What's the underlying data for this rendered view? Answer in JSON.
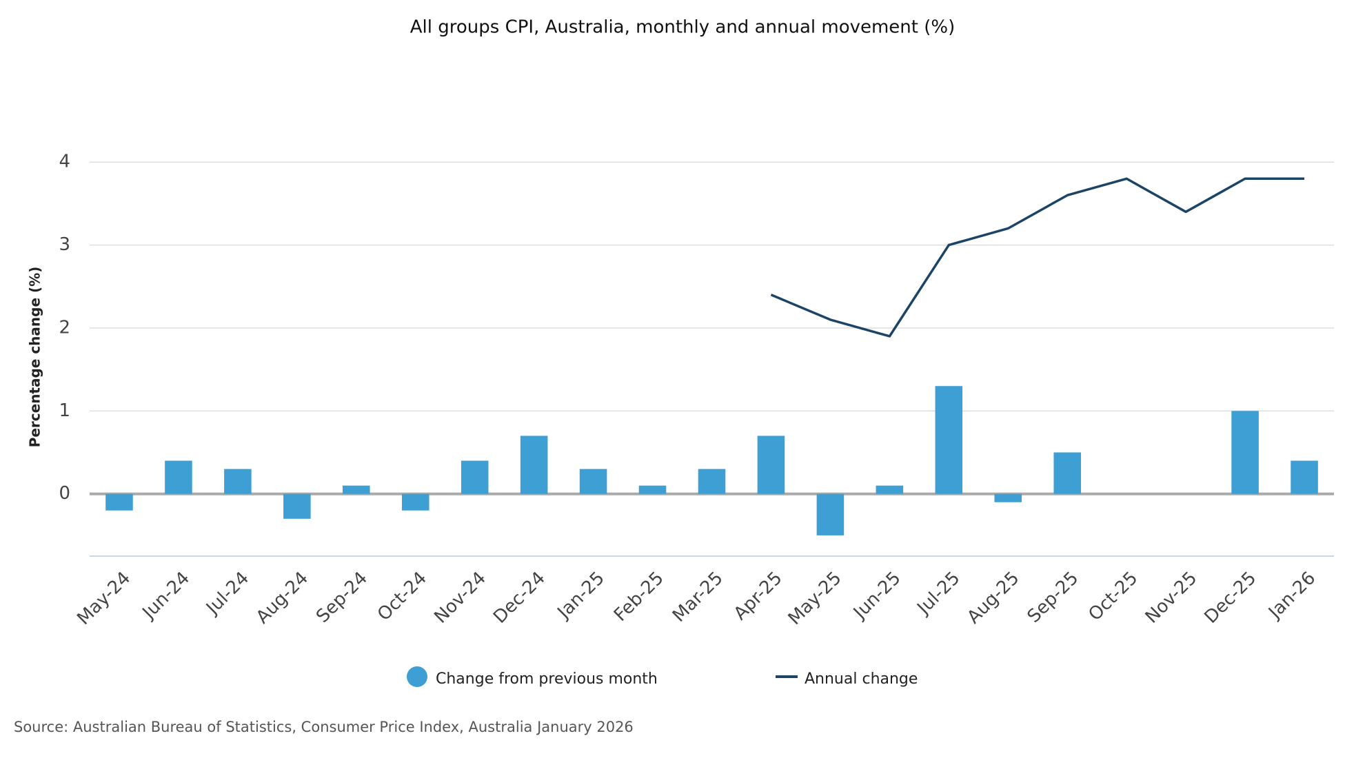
{
  "chart_data": {
    "type": "bar",
    "title": "All groups CPI, Australia, monthly and annual movement (%)",
    "y_label": "Percentage change (%)",
    "source": "Source: Australian Bureau of Statistics, Consumer Price Index, Australia January 2026",
    "categories": [
      "May-24",
      "Jun-24",
      "Jul-24",
      "Aug-24",
      "Sep-24",
      "Oct-24",
      "Nov-24",
      "Dec-24",
      "Jan-25",
      "Feb-25",
      "Mar-25",
      "Apr-25",
      "May-25",
      "Jun-25",
      "Jul-25",
      "Aug-25",
      "Sep-25",
      "Oct-25",
      "Nov-25",
      "Dec-25",
      "Jan-26"
    ],
    "series": [
      {
        "name": "Change from previous month",
        "type": "bar",
        "color": "#3d9fd3",
        "values": [
          -0.2,
          0.4,
          0.3,
          -0.3,
          0.1,
          -0.2,
          0.4,
          0.7,
          0.3,
          0.1,
          0.3,
          0.7,
          -0.5,
          0.1,
          1.3,
          -0.1,
          0.5,
          0.0,
          0.0,
          1.0,
          0.4
        ]
      },
      {
        "name": "Annual change",
        "type": "line",
        "color": "#1b4466",
        "values": [
          null,
          null,
          null,
          null,
          null,
          null,
          null,
          null,
          null,
          null,
          null,
          2.4,
          2.1,
          1.9,
          3.0,
          3.2,
          3.6,
          3.8,
          3.4,
          3.8,
          3.8
        ]
      }
    ],
    "ylim": [
      -0.75,
      4.5
    ],
    "yticks": [
      0,
      1,
      2,
      3,
      4
    ],
    "grid": true
  }
}
